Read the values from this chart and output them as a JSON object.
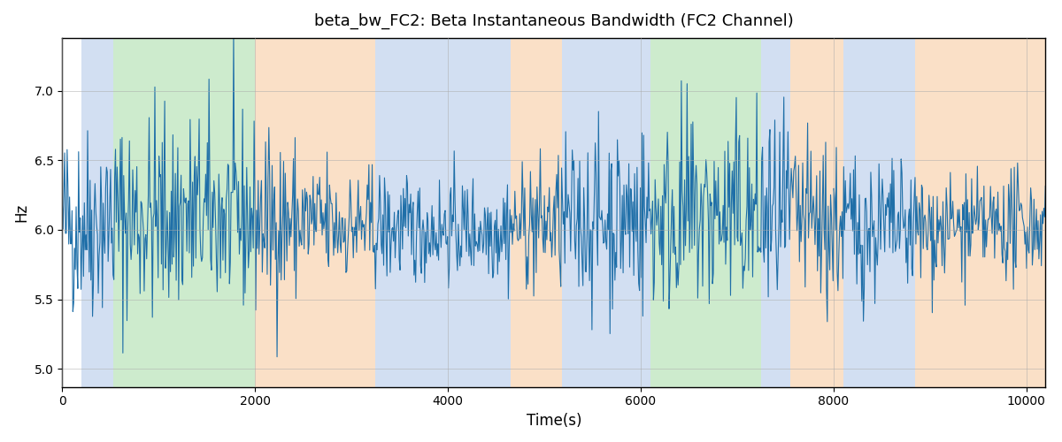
{
  "title": "beta_bw_FC2: Beta Instantaneous Bandwidth (FC2 Channel)",
  "xlabel": "Time(s)",
  "ylabel": "Hz",
  "xlim": [
    0,
    10200
  ],
  "ylim": [
    4.87,
    7.38
  ],
  "yticks": [
    5.0,
    5.5,
    6.0,
    6.5,
    7.0
  ],
  "xticks": [
    0,
    2000,
    4000,
    6000,
    8000,
    10000
  ],
  "line_color": "#1f6fa8",
  "line_width": 0.8,
  "background_color": "#ffffff",
  "grid_color": "#aaaaaa",
  "bands": [
    {
      "xmin": 200,
      "xmax": 530,
      "color": "#aec6e8",
      "alpha": 0.55
    },
    {
      "xmin": 530,
      "xmax": 2000,
      "color": "#90d490",
      "alpha": 0.45
    },
    {
      "xmin": 2000,
      "xmax": 3250,
      "color": "#f7c899",
      "alpha": 0.55
    },
    {
      "xmin": 3250,
      "xmax": 3530,
      "color": "#aec6e8",
      "alpha": 0.55
    },
    {
      "xmin": 3530,
      "xmax": 4650,
      "color": "#aec6e8",
      "alpha": 0.55
    },
    {
      "xmin": 4650,
      "xmax": 5180,
      "color": "#f7c899",
      "alpha": 0.55
    },
    {
      "xmin": 5180,
      "xmax": 5750,
      "color": "#aec6e8",
      "alpha": 0.55
    },
    {
      "xmin": 5750,
      "xmax": 6100,
      "color": "#aec6e8",
      "alpha": 0.55
    },
    {
      "xmin": 6100,
      "xmax": 7250,
      "color": "#90d490",
      "alpha": 0.45
    },
    {
      "xmin": 7250,
      "xmax": 7550,
      "color": "#aec6e8",
      "alpha": 0.55
    },
    {
      "xmin": 7550,
      "xmax": 8100,
      "color": "#f7c899",
      "alpha": 0.55
    },
    {
      "xmin": 8100,
      "xmax": 8850,
      "color": "#aec6e8",
      "alpha": 0.55
    },
    {
      "xmin": 8850,
      "xmax": 10200,
      "color": "#f7c899",
      "alpha": 0.55
    }
  ],
  "seed": 42,
  "n_points": 1200,
  "time_start": 0,
  "time_end": 10200,
  "base_mean": 6.05,
  "noise_std": 0.28,
  "envelope_amplitude": 0.18,
  "envelope_periods": 3.5
}
